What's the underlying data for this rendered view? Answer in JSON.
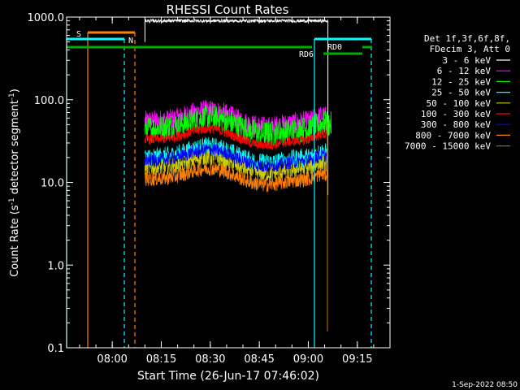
{
  "chart_data": {
    "type": "line",
    "title": "RHESSI Count Rates",
    "xlabel": "Start Time (26-Jun-17 07:46:02)",
    "ylabel_main": "Count Rate (s",
    "ylabel_sup": "-1",
    "ylabel_rest": " detector segment",
    "ylabel_sup2": "-1",
    "ylabel_close": ")",
    "y_scale": "log",
    "ylim": [
      0.1,
      1000.0
    ],
    "xlim": [
      "07:46:02",
      "09:25"
    ],
    "y_ticks": [
      "0.1",
      "1.0",
      "10.0",
      "100.0",
      "1000.0"
    ],
    "x_ticks": [
      "08:00",
      "08:15",
      "08:30",
      "08:45",
      "09:00",
      "09:15"
    ],
    "legend_header": [
      "Det 1f,3f,6f,8f,",
      "FDecim 3, Att 0"
    ],
    "legend_placement": "right",
    "timestamp": "1-Sep-2022 08:50",
    "series": [
      {
        "name": "3 - 6 keV",
        "color": "#ffffff",
        "level": 900.0,
        "start": "08:10",
        "end": "09:06",
        "amp": 0.02
      },
      {
        "name": "6 - 12 keV",
        "color": "#ff00ff",
        "level": 55.0,
        "start": "08:10",
        "end": "09:06",
        "amp": 0.13
      },
      {
        "name": "12 - 25 keV",
        "color": "#00ff00",
        "level": 45.0,
        "start": "08:10",
        "end": "09:07",
        "amp": 0.16
      },
      {
        "name": "25 - 50 keV",
        "color": "#00ffff",
        "level": 20.0,
        "start": "08:10",
        "end": "09:06",
        "amp": 0.12
      },
      {
        "name": "50 - 100 keV",
        "color": "#cccc00",
        "level": 15.0,
        "start": "08:10",
        "end": "09:06",
        "amp": 0.1
      },
      {
        "name": "100 - 300 keV",
        "color": "#ff0000",
        "level": 33.0,
        "start": "08:10",
        "end": "09:06",
        "amp": 0.06
      },
      {
        "name": "300 - 800 keV",
        "color": "#0000ff",
        "level": 18.5,
        "start": "08:10",
        "end": "09:06",
        "amp": 0.08
      },
      {
        "name": "800 - 7000 keV",
        "color": "#ff8000",
        "level": 11.0,
        "start": "08:10",
        "end": "09:06",
        "amp": 0.09
      },
      {
        "name": "7000 - 15000 keV",
        "color": "#996600",
        "level": 8.0,
        "start": "08:10",
        "end": "09:06",
        "amp": 0.0
      }
    ],
    "annotations": [
      {
        "text": "S",
        "color": "#ff8000"
      },
      {
        "text": "N",
        "color": "#00ffff"
      },
      {
        "text": "RD0",
        "color": "#00aa00"
      },
      {
        "text": "RD6",
        "color": "#00aa00"
      }
    ]
  }
}
